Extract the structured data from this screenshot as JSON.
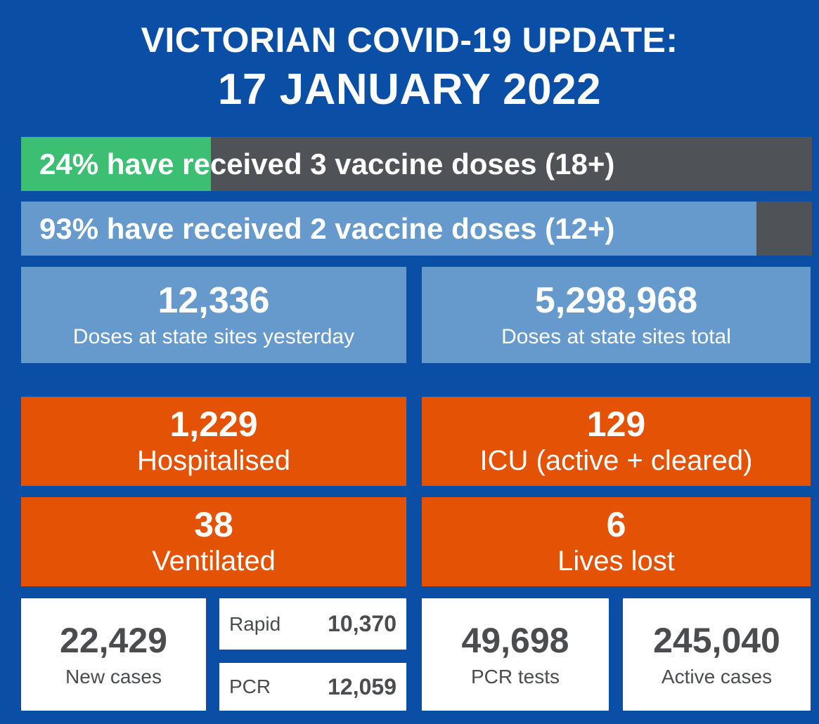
{
  "header": {
    "title_line1": "VICTORIAN COVID-19 UPDATE:",
    "title_line2": "17 JANUARY 2022"
  },
  "vaccine_bars": [
    {
      "percent_label": "24% have",
      "rest_label": " received 3 vaccine doses (18+)",
      "fill_fraction": 0.24,
      "fill_color": "#3cbf72"
    },
    {
      "percent_label": "93% have",
      "rest_label": " received 2 vaccine doses (12+)",
      "fill_fraction": 0.93,
      "fill_color": "#6699cc"
    }
  ],
  "doses": {
    "yesterday": {
      "value": "12,336",
      "label": "Doses at state sites yesterday"
    },
    "total": {
      "value": "5,298,968",
      "label": "Doses at state sites total"
    }
  },
  "hospital": {
    "hospitalised": {
      "value": "1,229",
      "label": "Hospitalised"
    },
    "icu": {
      "value": "129",
      "label": "ICU (active + cleared)"
    },
    "ventilated": {
      "value": "38",
      "label": "Ventilated"
    },
    "lives_lost": {
      "value": "6",
      "label": "Lives lost"
    }
  },
  "cases": {
    "new_cases": {
      "value": "22,429",
      "label": "New cases"
    },
    "rapid": {
      "label": "Rapid",
      "value": "10,370"
    },
    "pcr": {
      "label": "PCR",
      "value": "12,059"
    },
    "pcr_tests": {
      "value": "49,698",
      "label": "PCR tests"
    },
    "active_cases": {
      "value": "245,040",
      "label": "Active cases"
    }
  },
  "colors": {
    "background": "#0a4ea6",
    "green": "#3cbf72",
    "light_blue": "#6699cc",
    "dark_grey": "#4f5257",
    "orange": "#e35205",
    "white": "#ffffff"
  }
}
